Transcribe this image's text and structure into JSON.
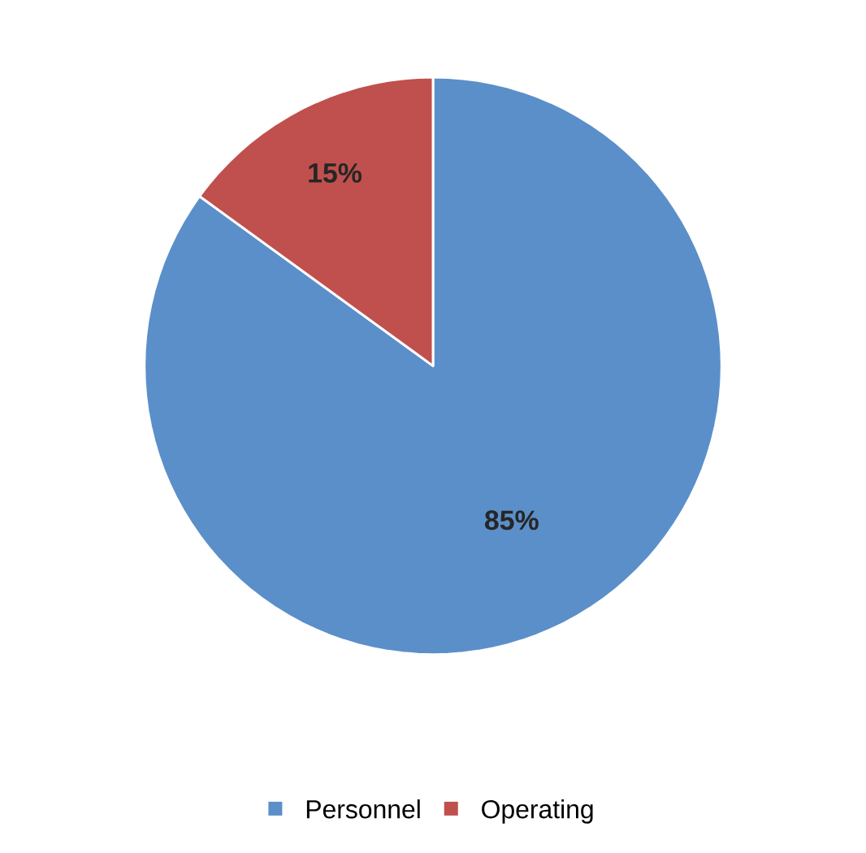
{
  "chart_data": {
    "type": "pie",
    "categories": [
      "Personnel",
      "Operating"
    ],
    "values": [
      85,
      15
    ],
    "colors": [
      "#5b8fc9",
      "#c0504d"
    ],
    "value_labels": [
      "85%",
      "15%"
    ],
    "legend": "bottom"
  }
}
